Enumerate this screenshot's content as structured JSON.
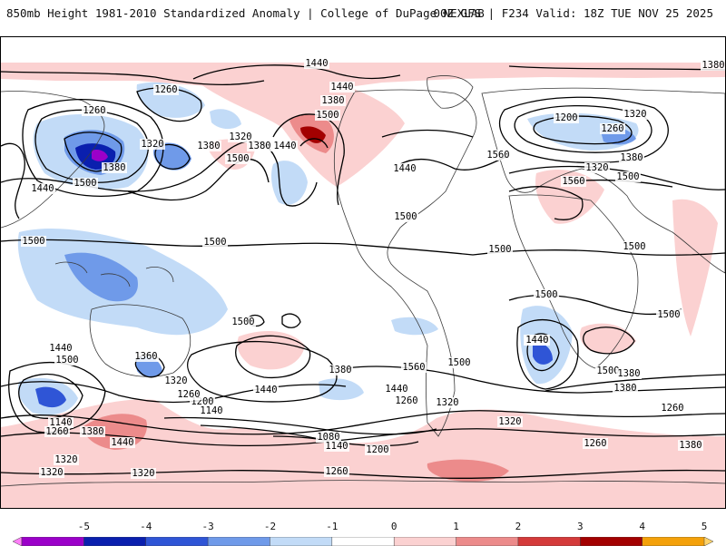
{
  "header": {
    "title": "850mb Height 1981-2010 Standardized Anomaly | College of DuPage NEXLAB",
    "run_info": "00Z GFS | F234 Valid: 18Z TUE NOV 25 2025"
  },
  "colorbar": {
    "ticks": [
      "-5",
      "-4",
      "-3",
      "-2",
      "-1",
      "0",
      "1",
      "2",
      "3",
      "4",
      "5"
    ],
    "colors": [
      "#ff7ff8",
      "#9b00c9",
      "#0a1fae",
      "#2f55d6",
      "#6f9ae9",
      "#c2dbf7",
      "#ffffff",
      "#fbd1d1",
      "#ec8b8b",
      "#d43a3a",
      "#a30000",
      "#f4a10a",
      "#ffd36a"
    ]
  },
  "contour_labels": [
    {
      "text": "1440"
    },
    {
      "text": "1380"
    },
    {
      "text": "1440"
    },
    {
      "text": "1260"
    },
    {
      "text": "1260"
    },
    {
      "text": "1500"
    },
    {
      "text": "1320"
    },
    {
      "text": "1380"
    },
    {
      "text": "1320"
    },
    {
      "text": "1380"
    },
    {
      "text": "1440"
    },
    {
      "text": "1500"
    },
    {
      "text": "1500"
    },
    {
      "text": "1440"
    },
    {
      "text": "1380"
    },
    {
      "text": "1380"
    },
    {
      "text": "1200"
    },
    {
      "text": "1320"
    },
    {
      "text": "1260"
    },
    {
      "text": "1380"
    },
    {
      "text": "1320"
    },
    {
      "text": "1440"
    },
    {
      "text": "1500"
    },
    {
      "text": "1560"
    },
    {
      "text": "1560"
    },
    {
      "text": "1500"
    },
    {
      "text": "1500"
    },
    {
      "text": "1500"
    },
    {
      "text": "1500"
    },
    {
      "text": "1500"
    },
    {
      "text": "1500"
    },
    {
      "text": "1500"
    },
    {
      "text": "1500"
    },
    {
      "text": "1500"
    },
    {
      "text": "1440"
    },
    {
      "text": "1560"
    },
    {
      "text": "1500"
    },
    {
      "text": "1380"
    },
    {
      "text": "1440"
    },
    {
      "text": "1500"
    },
    {
      "text": "1360"
    },
    {
      "text": "1320"
    },
    {
      "text": "1260"
    },
    {
      "text": "1200"
    },
    {
      "text": "1140"
    },
    {
      "text": "1440"
    },
    {
      "text": "1140"
    },
    {
      "text": "1260"
    },
    {
      "text": "1380"
    },
    {
      "text": "1440"
    },
    {
      "text": "1320"
    },
    {
      "text": "1320"
    },
    {
      "text": "1080"
    },
    {
      "text": "1140"
    },
    {
      "text": "1200"
    },
    {
      "text": "1260"
    },
    {
      "text": "1320"
    },
    {
      "text": "1260"
    },
    {
      "text": "1260"
    },
    {
      "text": "1320"
    },
    {
      "text": "1380"
    },
    {
      "text": "1380"
    },
    {
      "text": "1320"
    },
    {
      "text": "1260"
    },
    {
      "text": "1260"
    },
    {
      "text": "1440"
    },
    {
      "text": "1380"
    },
    {
      "text": "1440"
    }
  ]
}
